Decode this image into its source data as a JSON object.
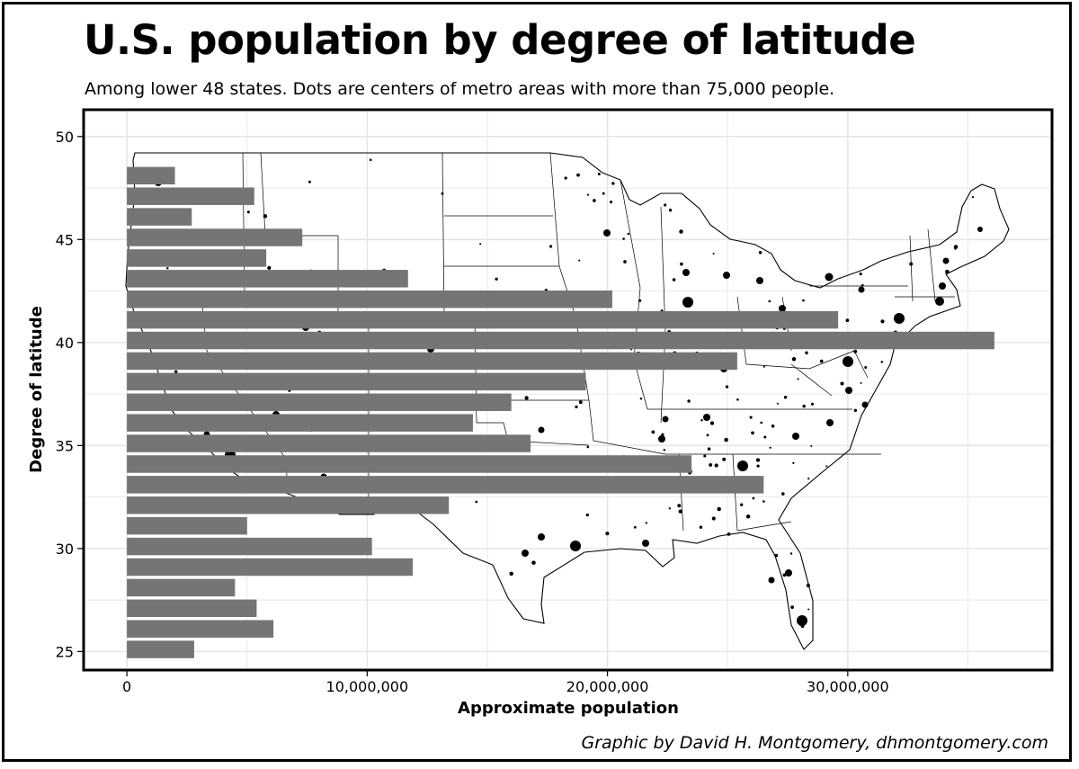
{
  "header": {
    "title": "U.S. population by degree of latitude",
    "subtitle": "Among lower 48 states. Dots are centers of metro areas with more than 75,000 people."
  },
  "credit": "Graphic by David H. Montgomery, dhmontgomery.com",
  "colors": {
    "bar": "#757575",
    "grid": "#e6e6e6",
    "dot": "#000000",
    "map_line": "#000000"
  },
  "chart_data": {
    "type": "bar",
    "orientation": "horizontal",
    "xlabel": "Approximate population",
    "ylabel": "Degree of latitude",
    "xlim": [
      -1800000,
      38500000
    ],
    "ylim": [
      24.1,
      51.3
    ],
    "x_ticks": [
      0,
      10000000,
      20000000,
      30000000
    ],
    "x_tick_labels": [
      "0",
      "10,000,000",
      "20,000,000",
      "30,000,000"
    ],
    "y_ticks": [
      25,
      30,
      35,
      40,
      45,
      50
    ],
    "y_tick_labels": [
      "25",
      "30",
      "35",
      "40",
      "45",
      "50"
    ],
    "grid": true,
    "background_map": "lower 48 U.S. states outline with metro-area dots",
    "categories": [
      25,
      26,
      27,
      28,
      29,
      30,
      31,
      32,
      33,
      34,
      35,
      36,
      37,
      38,
      39,
      40,
      41,
      42,
      43,
      44,
      45,
      46,
      47,
      48
    ],
    "values": [
      2800000,
      6100000,
      5400000,
      4500000,
      11900000,
      10200000,
      5000000,
      13400000,
      26500000,
      23500000,
      16800000,
      14400000,
      16000000,
      19100000,
      25400000,
      36100000,
      29600000,
      20200000,
      11700000,
      5800000,
      7300000,
      2700000,
      5300000,
      2000000
    ]
  }
}
